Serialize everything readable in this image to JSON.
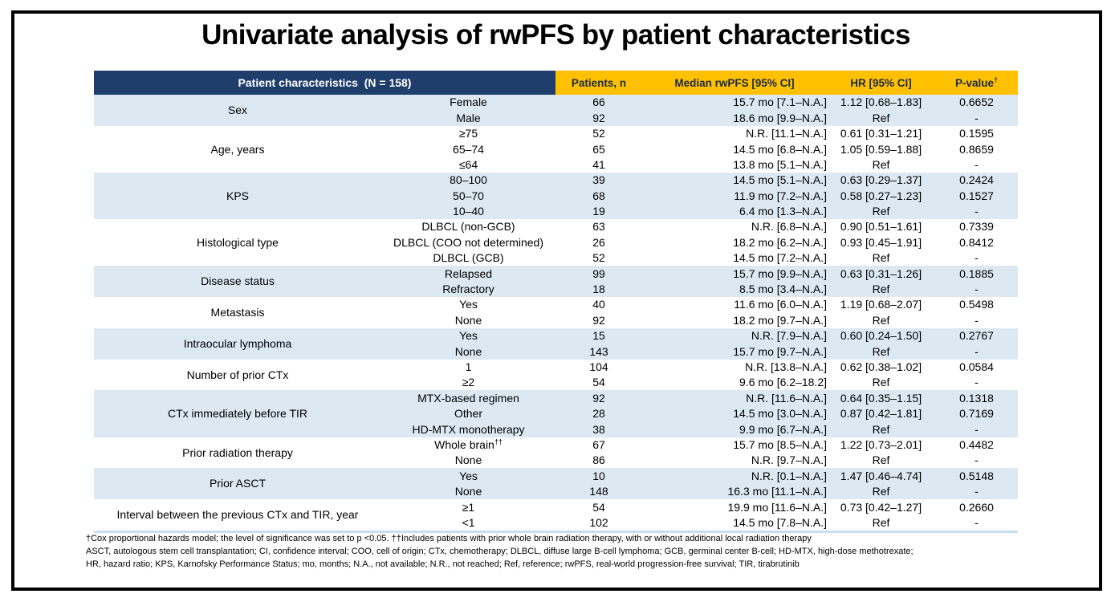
{
  "title": "Univariate analysis of rwPFS by patient characteristics",
  "colors": {
    "header_navy": "#1F3E6C",
    "header_gold": "#FFC000",
    "stripe_blue": "#DCE9F2",
    "border_black": "#000000"
  },
  "table": {
    "header": {
      "characteristics": "Patient characteristics  (N = 158)",
      "patients": "Patients, n",
      "median": "Median rwPFS [95% CI]",
      "hr": "HR [95% CI]",
      "pvalue": "P-value",
      "pvalue_sup": "†"
    },
    "groups": [
      {
        "label": "Sex",
        "shaded": true,
        "rows": [
          {
            "value": "Female",
            "n": "66",
            "median": "15.7 mo [7.1–N.A.]",
            "hr": "1.12 [0.68–1.83]",
            "p": "0.6652"
          },
          {
            "value": "Male",
            "n": "92",
            "median": "18.6 mo [9.9–N.A.]",
            "hr": "Ref",
            "p": "-"
          }
        ]
      },
      {
        "label": "Age, years",
        "shaded": false,
        "rows": [
          {
            "value": "≥75",
            "n": "52",
            "median": "N.R. [11.1–N.A.]",
            "hr": "0.61 [0.31–1.21]",
            "p": "0.1595"
          },
          {
            "value": "65–74",
            "n": "65",
            "median": "14.5 mo [6.8–N.A.]",
            "hr": "1.05 [0.59–1.88]",
            "p": "0.8659"
          },
          {
            "value": "≤64",
            "n": "41",
            "median": "13.8 mo [5.1–N.A.]",
            "hr": "Ref",
            "p": "-"
          }
        ]
      },
      {
        "label": "KPS",
        "shaded": true,
        "rows": [
          {
            "value": "80–100",
            "n": "39",
            "median": "14.5 mo [5.1–N.A.]",
            "hr": "0.63 [0.29–1.37]",
            "p": "0.2424"
          },
          {
            "value": "50–70",
            "n": "68",
            "median": "11.9 mo [7.2–N.A.]",
            "hr": "0.58 [0.27–1.23]",
            "p": "0.1527"
          },
          {
            "value": "10–40",
            "n": "19",
            "median": "6.4 mo [1.3–N.A.]",
            "hr": "Ref",
            "p": "-"
          }
        ]
      },
      {
        "label": "Histological type",
        "shaded": false,
        "rows": [
          {
            "value": "DLBCL (non-GCB)",
            "n": "63",
            "median": "N.R. [6.8–N.A.]",
            "hr": "0.90 [0.51–1.61]",
            "p": "0.7339"
          },
          {
            "value": "DLBCL (COO not determined)",
            "n": "26",
            "median": "18.2 mo [6.2–N.A.]",
            "hr": "0.93 [0.45–1.91]",
            "p": "0.8412"
          },
          {
            "value": "DLBCL (GCB)",
            "n": "52",
            "median": "14.5 mo [7.2–N.A.]",
            "hr": "Ref",
            "p": "-"
          }
        ]
      },
      {
        "label": "Disease status",
        "shaded": true,
        "rows": [
          {
            "value": "Relapsed",
            "n": "99",
            "median": "15.7 mo [9.9–N.A.]",
            "hr": "0.63 [0.31–1.26]",
            "p": "0.1885"
          },
          {
            "value": "Refractory",
            "n": "18",
            "median": "8.5 mo [3.4–N.A.]",
            "hr": "Ref",
            "p": "-"
          }
        ]
      },
      {
        "label": "Metastasis",
        "shaded": false,
        "rows": [
          {
            "value": "Yes",
            "n": "40",
            "median": "11.6 mo [6.0–N.A.]",
            "hr": "1.19 [0.68–2.07]",
            "p": "0.5498"
          },
          {
            "value": "None",
            "n": "92",
            "median": "18.2 mo [9.7–N.A.]",
            "hr": "Ref",
            "p": "-"
          }
        ]
      },
      {
        "label": "Intraocular lymphoma",
        "shaded": true,
        "rows": [
          {
            "value": "Yes",
            "n": "15",
            "median": "N.R. [7.9–N.A.]",
            "hr": "0.60 [0.24–1.50]",
            "p": "0.2767"
          },
          {
            "value": "None",
            "n": "143",
            "median": "15.7 mo [9.7–N.A.]",
            "hr": "Ref",
            "p": "-"
          }
        ]
      },
      {
        "label": "Number of prior CTx",
        "shaded": false,
        "rows": [
          {
            "value": "1",
            "n": "104",
            "median": "N.R. [13.8–N.A.]",
            "hr": "0.62 [0.38–1.02]",
            "p": "0.0584"
          },
          {
            "value": "≥2",
            "n": "54",
            "median": "9.6 mo [6.2–18.2]",
            "hr": "Ref",
            "p": "-"
          }
        ]
      },
      {
        "label": "CTx immediately before TIR",
        "shaded": true,
        "rows": [
          {
            "value": "MTX-based regimen",
            "n": "92",
            "median": "N.R. [11.6–N.A.]",
            "hr": "0.64 [0.35–1.15]",
            "p": "0.1318"
          },
          {
            "value": "Other",
            "n": "28",
            "median": "14.5 mo [3.0–N.A.]",
            "hr": "0.87 [0.42–1.81]",
            "p": "0.7169"
          },
          {
            "value": "HD-MTX monotherapy",
            "n": "38",
            "median": "9.9 mo [6.7–N.A.]",
            "hr": "Ref",
            "p": "-"
          }
        ]
      },
      {
        "label": "Prior radiation therapy",
        "shaded": false,
        "rows": [
          {
            "value": "Whole brain",
            "value_sup": "††",
            "n": "67",
            "median": "15.7 mo [8.5–N.A.]",
            "hr": "1.22 [0.73–2.01]",
            "p": "0.4482"
          },
          {
            "value": "None",
            "n": "86",
            "median": "N.R. [9.7–N.A.]",
            "hr": "Ref",
            "p": "-"
          }
        ]
      },
      {
        "label": "Prior ASCT",
        "shaded": true,
        "rows": [
          {
            "value": "Yes",
            "n": "10",
            "median": "N.R. [0.1–N.A.]",
            "hr": "1.47 [0.46–4.74]",
            "p": "0.5148"
          },
          {
            "value": "None",
            "n": "148",
            "median": "16.3 mo [11.1–N.A.]",
            "hr": "Ref",
            "p": "-"
          }
        ]
      },
      {
        "label": "Interval between the previous CTx and TIR, year",
        "shaded": false,
        "rows": [
          {
            "value": "≥1",
            "n": "54",
            "median": "19.9 mo [11.6–N.A.]",
            "hr": "0.73 [0.42–1.27]",
            "p": "0.2660"
          },
          {
            "value": "<1",
            "n": "102",
            "median": "14.5 mo [7.8–N.A.]",
            "hr": "Ref",
            "p": "-"
          }
        ]
      }
    ]
  },
  "footnotes": [
    "†Cox proportional hazards model; the level of significance was set to p <0.05. ††Includes patients with prior whole brain radiation therapy, with or without additional local radiation therapy",
    "ASCT, autologous stem cell transplantation; CI, confidence interval; COO, cell of origin; CTx, chemotherapy; DLBCL, diffuse large B-cell lymphoma; GCB, germinal center B-cell; HD-MTX, high-dose methotrexate;",
    "HR, hazard ratio; KPS, Karnofsky Performance Status; mo, months; N.A., not available; N.R., not reached; Ref, reference; rwPFS, real-world progression-free survival; TIR, tirabrutinib"
  ]
}
